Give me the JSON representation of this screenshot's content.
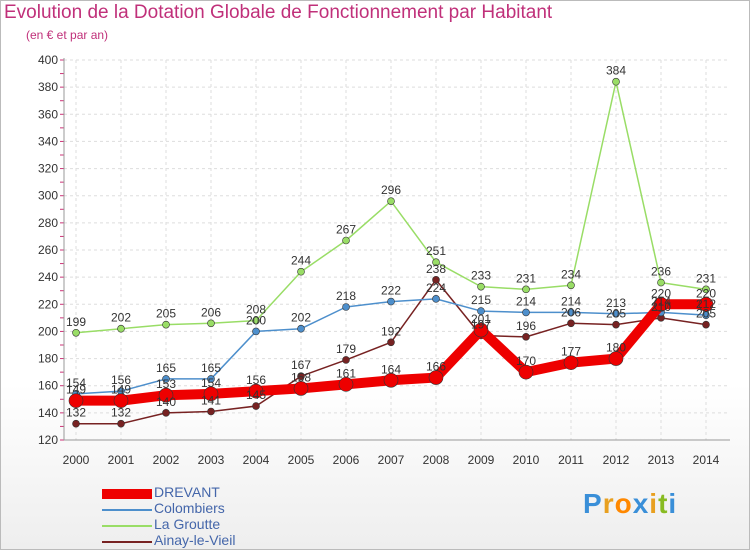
{
  "chart_data": {
    "type": "line",
    "title": "Evolution de la Dotation Globale de Fonctionnement par Habitant",
    "subtitle": "(en € et par an)",
    "xlabel": "",
    "ylabel": "",
    "x": [
      "2000",
      "2001",
      "2002",
      "2003",
      "2004",
      "2005",
      "2006",
      "2007",
      "2008",
      "2009",
      "2010",
      "2011",
      "2012",
      "2013",
      "2014"
    ],
    "ylim": [
      120,
      400
    ],
    "yticks": [
      120,
      140,
      160,
      180,
      200,
      220,
      240,
      260,
      280,
      300,
      320,
      340,
      360,
      380,
      400
    ],
    "grid": true,
    "legend_position": "bottom-left",
    "series": [
      {
        "name": "DREVANT",
        "color": "#ee0000",
        "values": [
          149,
          149,
          153,
          154,
          156,
          158,
          161,
          164,
          166,
          201,
          170,
          177,
          180,
          220,
          220
        ]
      },
      {
        "name": "Colombiers",
        "color": "#4d8fcc",
        "values": [
          154,
          156,
          165,
          165,
          200,
          202,
          218,
          222,
          224,
          215,
          214,
          214,
          213,
          214,
          212
        ]
      },
      {
        "name": "La Groutte",
        "color": "#99dd66",
        "values": [
          199,
          202,
          205,
          206,
          208,
          244,
          267,
          296,
          251,
          233,
          231,
          234,
          384,
          236,
          231
        ]
      },
      {
        "name": "Ainay-le-Vieil",
        "color": "#772222",
        "values": [
          132,
          132,
          140,
          141,
          145,
          167,
          179,
          192,
          238,
          197,
          196,
          206,
          205,
          210,
          205
        ]
      }
    ],
    "labels": {
      "DREVANT": [
        "149",
        "149",
        "153",
        "154",
        "156",
        "158",
        "161",
        "164",
        "166",
        "201",
        "170",
        "177",
        "180",
        "220",
        "220"
      ],
      "Colombiers": [
        "154",
        "156",
        "165",
        "165",
        "200",
        "202",
        "218",
        "222",
        "224",
        "215",
        "214",
        "214",
        "213",
        "214",
        "212"
      ],
      "La Groutte": [
        "199",
        "202",
        "205",
        "206",
        "208",
        "244",
        "267",
        "296",
        "251",
        "233",
        "231",
        "234",
        "384",
        "236",
        "231"
      ],
      "Ainay-le-Vieil": [
        "132",
        "132",
        "140",
        "141",
        "145",
        "167",
        "179",
        "192",
        "238",
        "197",
        "196",
        "206",
        "205",
        "210",
        "205"
      ]
    }
  },
  "logo": {
    "text": "Proxiti",
    "colors": [
      "#3a8fd8",
      "#e8a020",
      "#ff8800",
      "#3a8fd8",
      "#e8a020",
      "#88bb22",
      "#3a8fd8"
    ]
  }
}
